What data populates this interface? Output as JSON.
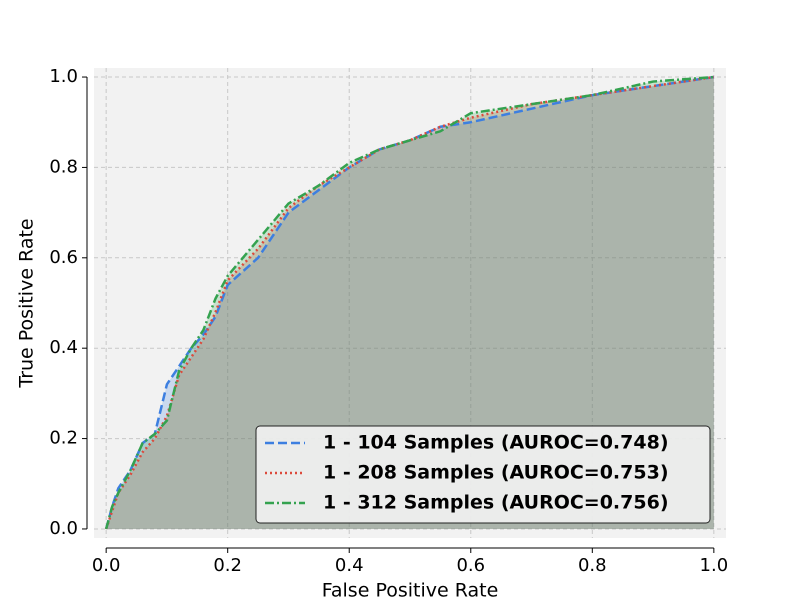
{
  "chart_data": {
    "type": "line",
    "x_label": "False Positive Rate",
    "y_label": "True Positive Rate",
    "x": [
      0,
      0.01,
      0.02,
      0.04,
      0.06,
      0.08,
      0.1,
      0.12,
      0.14,
      0.16,
      0.18,
      0.2,
      0.25,
      0.3,
      0.35,
      0.4,
      0.45,
      0.5,
      0.55,
      0.6,
      0.7,
      0.8,
      0.9,
      1.0
    ],
    "series": [
      {
        "name": "1 - 104 Samples (AUROC=0.748)",
        "color": "#3d7fe0",
        "linestyle": "dashed",
        "values": [
          0,
          0.05,
          0.09,
          0.13,
          0.19,
          0.21,
          0.32,
          0.36,
          0.4,
          0.43,
          0.47,
          0.54,
          0.6,
          0.7,
          0.75,
          0.8,
          0.84,
          0.86,
          0.89,
          0.9,
          0.93,
          0.96,
          0.98,
          1.0
        ]
      },
      {
        "name": "1 - 208 Samples (AUROC=0.753)",
        "color": "#dc4a3c",
        "linestyle": "dotted",
        "values": [
          0,
          0.04,
          0.08,
          0.12,
          0.17,
          0.2,
          0.25,
          0.34,
          0.38,
          0.42,
          0.48,
          0.55,
          0.62,
          0.71,
          0.76,
          0.8,
          0.84,
          0.86,
          0.89,
          0.91,
          0.94,
          0.96,
          0.98,
          1.0
        ]
      },
      {
        "name": "1 - 312 Samples (AUROC=0.756)",
        "color": "#34a24f",
        "linestyle": "dashdot",
        "values": [
          0,
          0.05,
          0.08,
          0.13,
          0.19,
          0.21,
          0.24,
          0.35,
          0.4,
          0.44,
          0.51,
          0.56,
          0.64,
          0.72,
          0.76,
          0.81,
          0.84,
          0.86,
          0.88,
          0.92,
          0.94,
          0.96,
          0.99,
          1.0
        ]
      }
    ],
    "xlim": [
      -0.02,
      1.02
    ],
    "ylim": [
      -0.02,
      1.02
    ],
    "xticks": [
      {
        "value": 0,
        "label": "0.0"
      },
      0.2,
      0.4,
      0.6,
      0.8,
      {
        "value": 1,
        "label": "1.0"
      }
    ],
    "yticks": [
      {
        "value": 0,
        "label": "0.0"
      },
      0.2,
      0.4,
      0.6,
      0.8,
      {
        "value": 1,
        "label": "1.0"
      }
    ],
    "grid": true,
    "fill": true,
    "legend": "lower right"
  }
}
